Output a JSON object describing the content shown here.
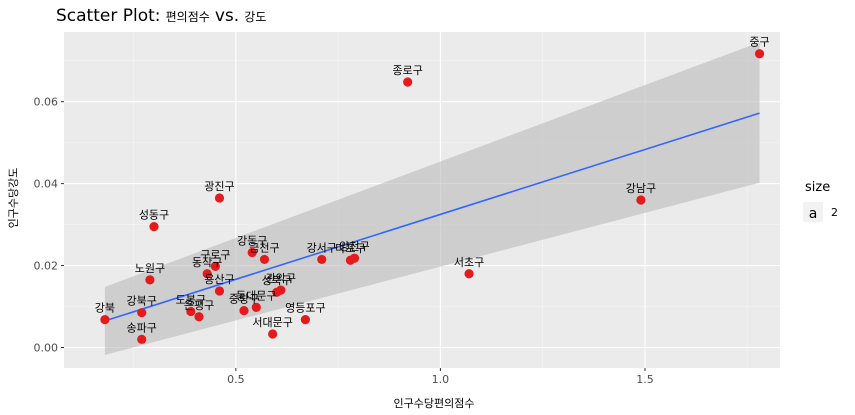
{
  "title": {
    "part1": "Scatter Plot:",
    "part2": "편의점수",
    "part3": "vs.",
    "part4": "강도"
  },
  "legend": {
    "title": "size",
    "key_glyph": "a",
    "key_label": "2"
  },
  "colors": {
    "panel": "#ebebeb",
    "grid_major": "#ffffff",
    "grid_minor": "#f5f5f5",
    "point": "#e41a1c",
    "fit_line": "#3366ff",
    "ribbon": "#bdbdbd",
    "tick_text": "#4d4d4d"
  },
  "chart_data": {
    "type": "scatter",
    "xlabel": "인구수당편의점수",
    "ylabel": "인구수당강도",
    "xlim": [
      0.08,
      1.83
    ],
    "ylim": [
      -0.005,
      0.077
    ],
    "x_ticks": [
      0.5,
      1.0,
      1.5
    ],
    "x_tick_labels": [
      "0.5",
      "1.0",
      "1.5"
    ],
    "y_ticks": [
      0.0,
      0.02,
      0.04,
      0.06
    ],
    "y_tick_labels": [
      "0.00",
      "0.02",
      "0.04",
      "0.06"
    ],
    "grid": true,
    "legend_position": "right",
    "points": [
      {
        "label": "중구",
        "x": 1.78,
        "y": 0.0717
      },
      {
        "label": "종로구",
        "x": 0.92,
        "y": 0.0648
      },
      {
        "label": "강남구",
        "x": 1.49,
        "y": 0.036
      },
      {
        "label": "광진구",
        "x": 0.46,
        "y": 0.0365
      },
      {
        "label": "성동구",
        "x": 0.3,
        "y": 0.0295
      },
      {
        "label": "서초구",
        "x": 1.07,
        "y": 0.018
      },
      {
        "label": "강동구",
        "x": 0.54,
        "y": 0.0232
      },
      {
        "label": "금천구",
        "x": 0.57,
        "y": 0.0215
      },
      {
        "label": "강서구",
        "x": 0.71,
        "y": 0.0215
      },
      {
        "label": "마포구",
        "x": 0.78,
        "y": 0.0213
      },
      {
        "label": "양천구",
        "x": 0.79,
        "y": 0.0218
      },
      {
        "label": "구로구",
        "x": 0.45,
        "y": 0.0198
      },
      {
        "label": "동작구",
        "x": 0.43,
        "y": 0.018
      },
      {
        "label": "노원구",
        "x": 0.29,
        "y": 0.0165
      },
      {
        "label": "용산구",
        "x": 0.46,
        "y": 0.0138
      },
      {
        "label": "관악구",
        "x": 0.61,
        "y": 0.014
      },
      {
        "label": "성북구",
        "x": 0.6,
        "y": 0.0135
      },
      {
        "label": "동대문구",
        "x": 0.55,
        "y": 0.0098
      },
      {
        "label": "중랑구",
        "x": 0.52,
        "y": 0.009
      },
      {
        "label": "도봉구",
        "x": 0.39,
        "y": 0.0088
      },
      {
        "label": "은평구",
        "x": 0.41,
        "y": 0.0075
      },
      {
        "label": "강북구",
        "x": 0.27,
        "y": 0.0085
      },
      {
        "label": "영등포구",
        "x": 0.67,
        "y": 0.0068
      },
      {
        "label": "서대문구",
        "x": 0.59,
        "y": 0.0033
      },
      {
        "label": "송파구",
        "x": 0.27,
        "y": 0.002
      },
      {
        "label": "강북",
        "x": 0.18,
        "y": 0.0068
      }
    ],
    "fit": {
      "x_start": 0.18,
      "y_start": 0.0065,
      "x_end": 1.78,
      "y_end": 0.0572,
      "ci_upper_start": 0.0148,
      "ci_lower_start": -0.0018,
      "ci_upper_end": 0.0745,
      "ci_lower_end": 0.0402
    }
  }
}
